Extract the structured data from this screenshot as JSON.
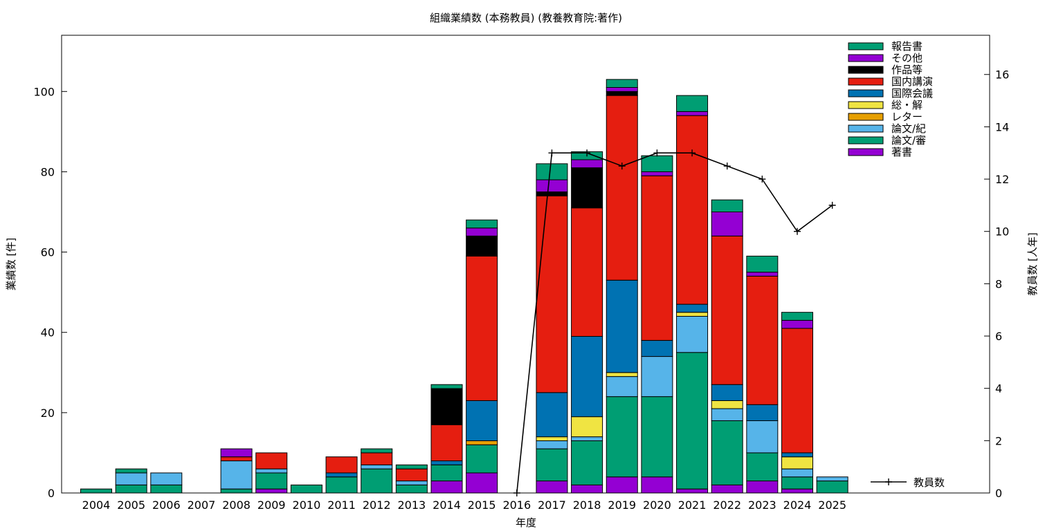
{
  "chart_data": {
    "type": "bar",
    "stacked": true,
    "title": "組織業績数 (本務教員) (教養教育院:著作)",
    "xlabel": "年度",
    "ylabel": "業績数 [件]",
    "y2label": "教員数 [人年]",
    "ylim": [
      0,
      114
    ],
    "y2lim": [
      0,
      17.5
    ],
    "yticks": [
      "0",
      "20",
      "40",
      "60",
      "80",
      "100"
    ],
    "y2ticks": [
      "0",
      "2",
      "4",
      "6",
      "8",
      "10",
      "12",
      "14",
      "16"
    ],
    "legend_position": "top-right",
    "categories": [
      "2004",
      "2005",
      "2006",
      "2007",
      "2008",
      "2009",
      "2010",
      "2011",
      "2012",
      "2013",
      "2014",
      "2015",
      "2016",
      "2017",
      "2018",
      "2019",
      "2020",
      "2021",
      "2022",
      "2023",
      "2024",
      "2025"
    ],
    "series": [
      {
        "name": "著書",
        "color": "#9400d3",
        "values": [
          0,
          0,
          0,
          0,
          0,
          1,
          0,
          0,
          0,
          0,
          3,
          5,
          0,
          3,
          2,
          4,
          4,
          1,
          2,
          3,
          1,
          0
        ]
      },
      {
        "name": "論文/審",
        "color": "#009e73",
        "values": [
          1,
          2,
          2,
          0,
          1,
          4,
          2,
          4,
          6,
          2,
          4,
          7,
          0,
          8,
          11,
          20,
          20,
          34,
          16,
          7,
          3,
          3
        ]
      },
      {
        "name": "論文/紀",
        "color": "#56b4e9",
        "values": [
          0,
          3,
          3,
          0,
          7,
          1,
          0,
          0,
          1,
          1,
          0,
          0,
          0,
          2,
          1,
          5,
          10,
          9,
          3,
          8,
          2,
          1
        ]
      },
      {
        "name": "レター",
        "color": "#e69f00",
        "values": [
          0,
          0,
          0,
          0,
          0,
          0,
          0,
          0,
          0,
          0,
          0,
          1,
          0,
          0,
          0,
          0,
          0,
          0,
          0,
          0,
          0,
          0
        ]
      },
      {
        "name": "総・解",
        "color": "#f0e442",
        "values": [
          0,
          0,
          0,
          0,
          0,
          0,
          0,
          0,
          0,
          0,
          0,
          0,
          0,
          1,
          5,
          1,
          0,
          1,
          2,
          0,
          3,
          0
        ]
      },
      {
        "name": "国際会議",
        "color": "#0072b2",
        "values": [
          0,
          0,
          0,
          0,
          0,
          0,
          0,
          1,
          0,
          0,
          1,
          10,
          0,
          11,
          20,
          23,
          4,
          2,
          4,
          4,
          1,
          0
        ]
      },
      {
        "name": "国内講演",
        "color": "#e51e10",
        "values": [
          0,
          0,
          0,
          0,
          1,
          4,
          0,
          4,
          3,
          3,
          9,
          36,
          0,
          49,
          32,
          46,
          41,
          47,
          37,
          32,
          31,
          0
        ]
      },
      {
        "name": "作品等",
        "color": "#000000",
        "values": [
          0,
          0,
          0,
          0,
          0,
          0,
          0,
          0,
          0,
          0,
          9,
          5,
          0,
          1,
          10,
          1,
          0,
          0,
          0,
          0,
          0,
          0
        ]
      },
      {
        "name": "その他",
        "color": "#9400d3",
        "values": [
          0,
          0,
          0,
          0,
          2,
          0,
          0,
          0,
          0,
          0,
          0,
          2,
          0,
          3,
          2,
          1,
          1,
          1,
          6,
          1,
          2,
          0
        ]
      },
      {
        "name": "報告書",
        "color": "#009e73",
        "values": [
          0,
          1,
          0,
          0,
          0,
          0,
          0,
          0,
          1,
          1,
          1,
          2,
          0,
          4,
          2,
          2,
          4,
          4,
          3,
          4,
          2,
          0
        ]
      }
    ],
    "line_series": {
      "name": "教員数",
      "color": "#000000",
      "axis": "y2",
      "categories": [
        "2016",
        "2017",
        "2018",
        "2019",
        "2020",
        "2021",
        "2022",
        "2023",
        "2024",
        "2025"
      ],
      "values": [
        0,
        13,
        13,
        12.5,
        13,
        13,
        12.5,
        12,
        10,
        11
      ]
    }
  }
}
